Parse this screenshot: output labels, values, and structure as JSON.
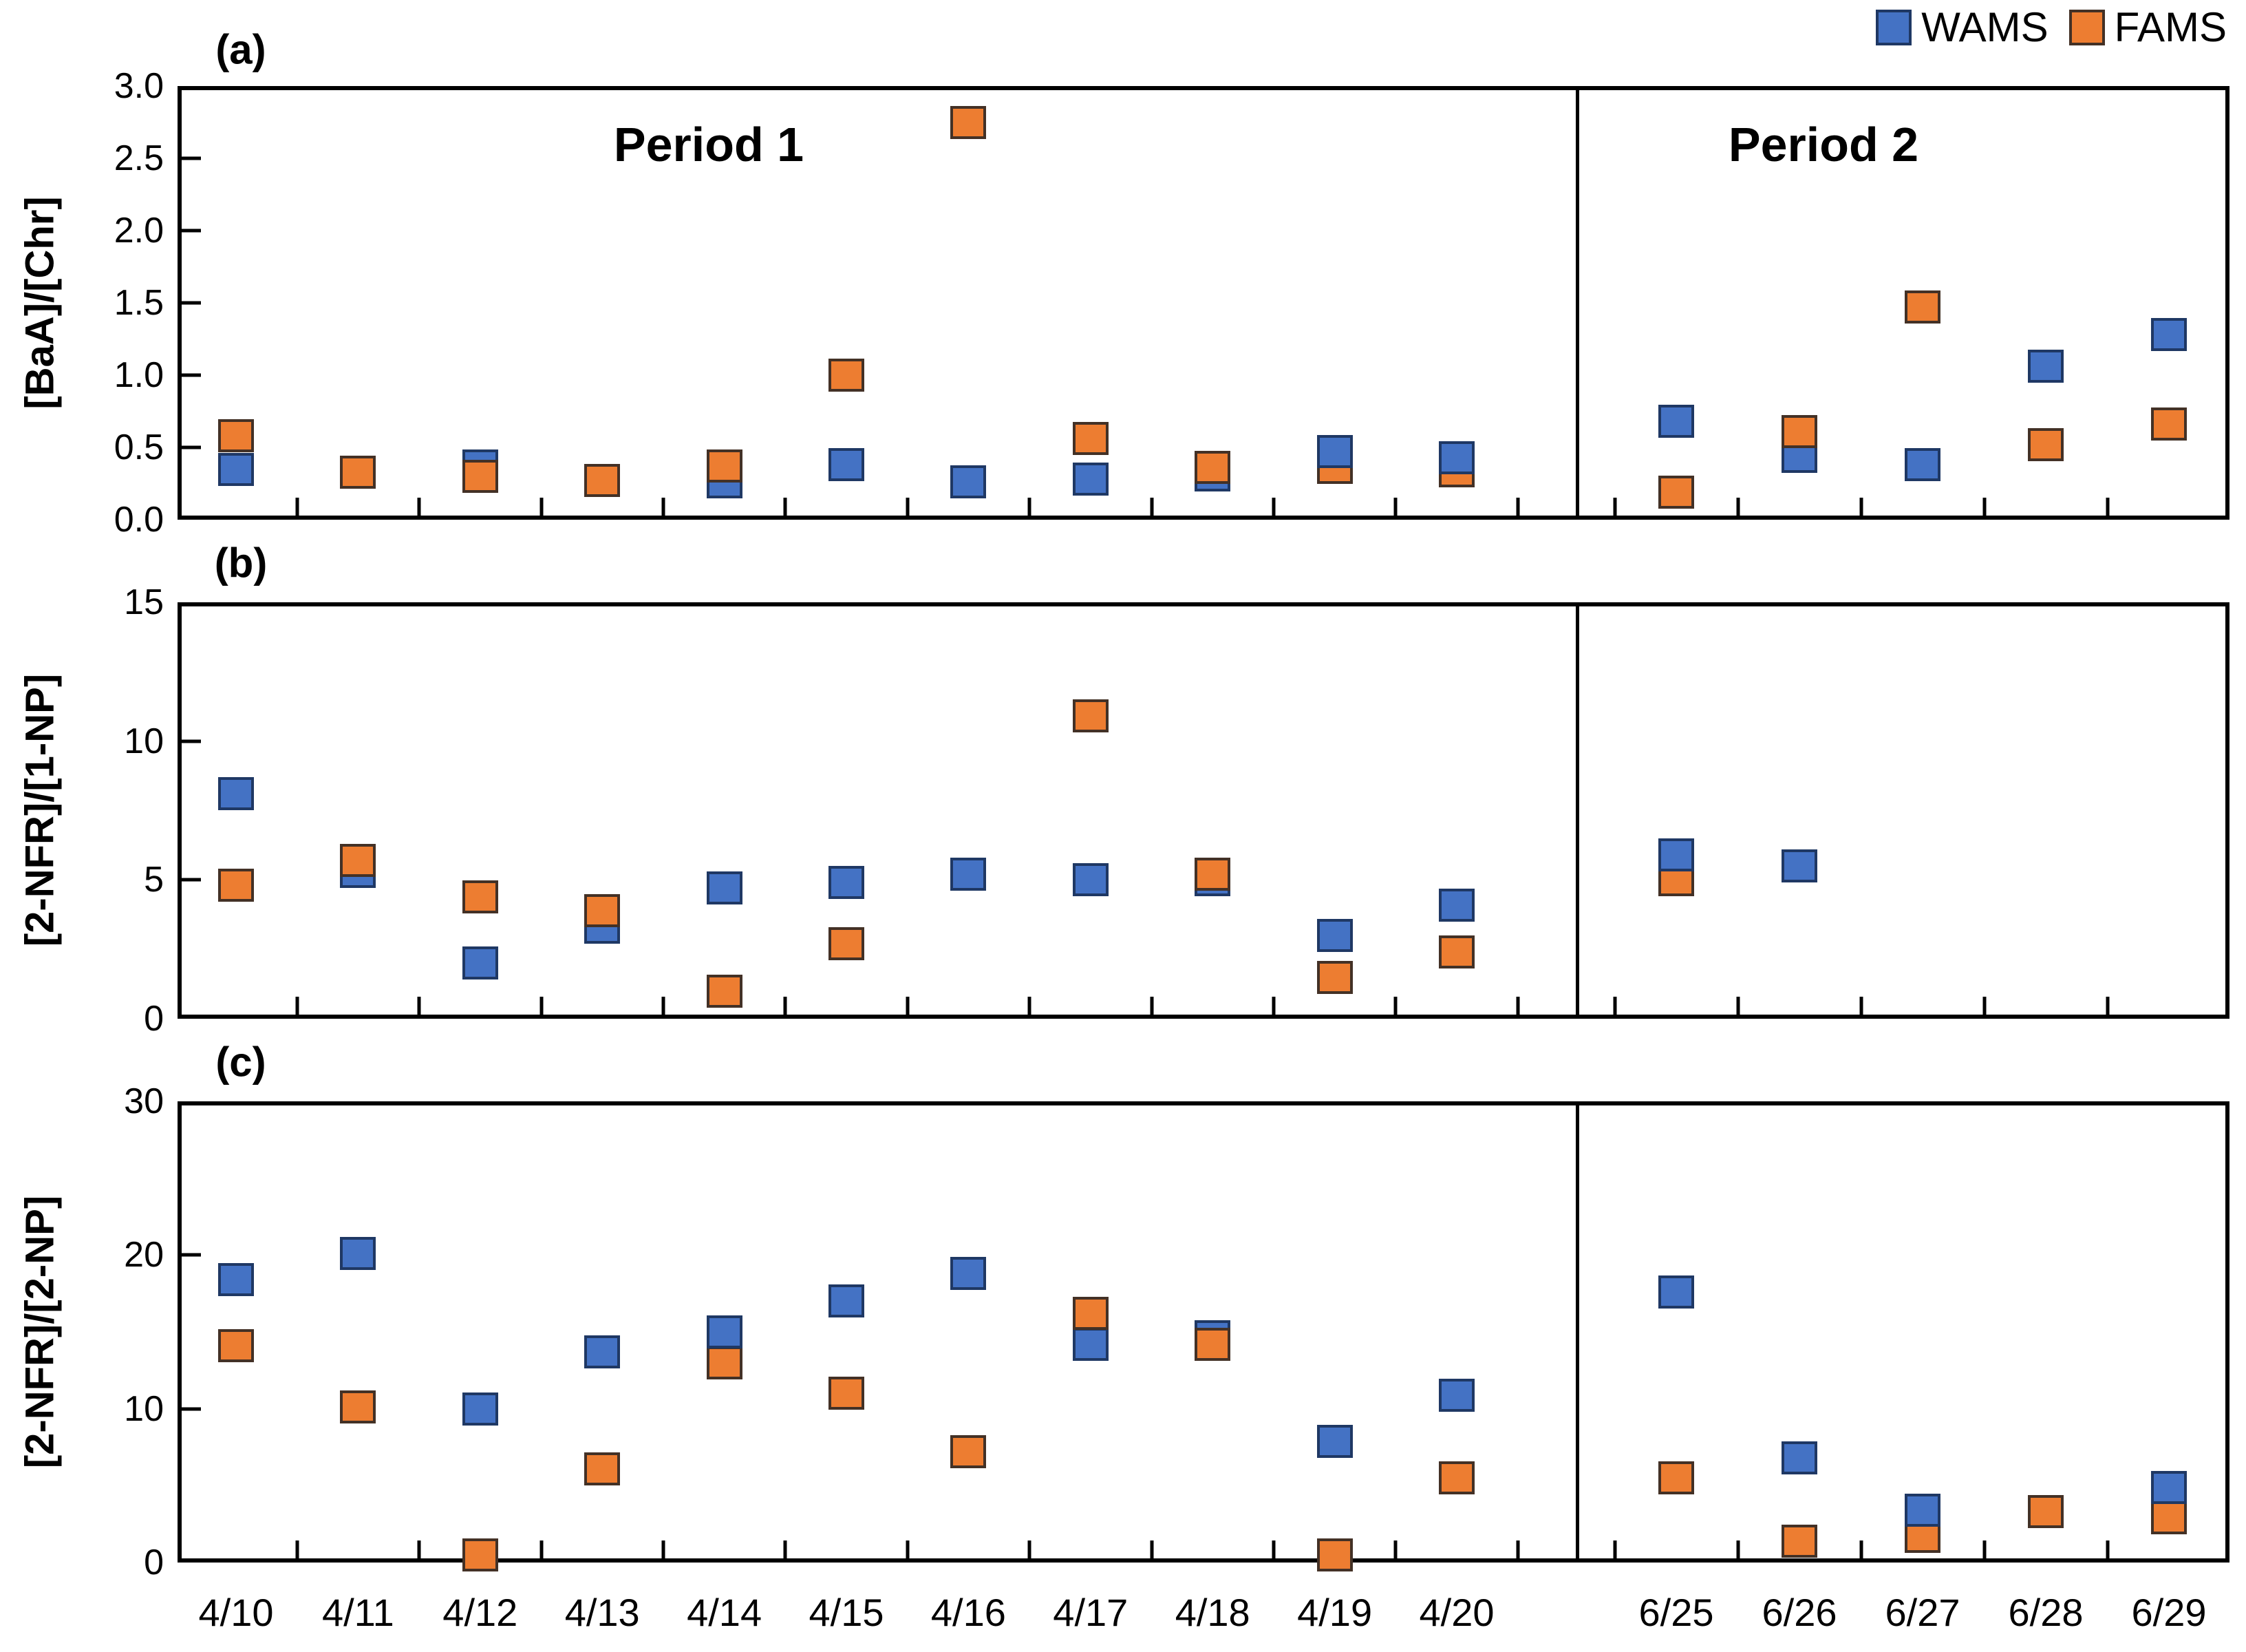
{
  "legend": {
    "items": [
      {
        "label": "WAMS",
        "color": "#4472C4",
        "border": "#1F3864"
      },
      {
        "label": "FAMS",
        "color": "#ED7D31",
        "border": "#433126"
      }
    ]
  },
  "periods": [
    {
      "label": "Period 1",
      "dates": [
        "4/10",
        "4/11",
        "4/12",
        "4/13",
        "4/14",
        "4/15",
        "4/16",
        "4/17",
        "4/18",
        "4/19",
        "4/20"
      ]
    },
    {
      "label": "Period 2",
      "dates": [
        "6/25",
        "6/26",
        "6/27",
        "6/28",
        "6/29"
      ]
    }
  ],
  "chart_data": [
    {
      "panel": "(a)",
      "type": "scatter",
      "ylabel": "[BaA]/[Chr]",
      "xlabel": "",
      "ylim": [
        0,
        3
      ],
      "yticks": [
        0,
        0.5,
        1,
        1.5,
        2,
        2.5,
        3
      ],
      "ytick_labels": [
        "0.0",
        "0.5",
        "1.0",
        "1.5",
        "2.0",
        "2.5",
        "3.0"
      ],
      "grid": false,
      "legend_position": "top-right",
      "categories": [
        "4/10",
        "4/11",
        "4/12",
        "4/13",
        "4/14",
        "4/15",
        "4/16",
        "4/17",
        "4/18",
        "4/19",
        "4/20",
        "6/25",
        "6/26",
        "6/27",
        "6/28",
        "6/29"
      ],
      "series": [
        {
          "name": "WAMS",
          "color": "#4472C4",
          "border": "#1F3864",
          "values": [
            0.35,
            null,
            0.37,
            null,
            0.26,
            0.38,
            0.26,
            0.28,
            0.31,
            0.47,
            0.43,
            0.68,
            0.44,
            0.38,
            1.06,
            1.28
          ]
        },
        {
          "name": "FAMS",
          "color": "#ED7D31",
          "border": "#433126",
          "values": [
            0.58,
            0.33,
            0.3,
            0.27,
            0.37,
            1.0,
            2.75,
            0.56,
            0.36,
            0.36,
            0.34,
            0.19,
            0.61,
            1.47,
            0.52,
            0.66
          ]
        }
      ],
      "wams_on_top": [
        "4/19",
        "4/20"
      ]
    },
    {
      "panel": "(b)",
      "type": "scatter",
      "ylabel": "[2-NFR]/[1-NP]",
      "xlabel": "",
      "ylim": [
        0,
        15
      ],
      "yticks": [
        0,
        5,
        10,
        15
      ],
      "ytick_labels": [
        "0",
        "5",
        "10",
        "15"
      ],
      "grid": false,
      "categories": [
        "4/10",
        "4/11",
        "4/12",
        "4/13",
        "4/14",
        "4/15",
        "4/16",
        "4/17",
        "4/18",
        "4/19",
        "4/20",
        "6/25",
        "6/26",
        "6/27",
        "6/28",
        "6/29"
      ],
      "series": [
        {
          "name": "WAMS",
          "color": "#4472C4",
          "border": "#1F3864",
          "values": [
            8.1,
            5.3,
            2.0,
            3.3,
            4.7,
            4.9,
            5.2,
            5.0,
            5.0,
            3.0,
            4.1,
            5.9,
            5.5,
            null,
            null,
            null
          ]
        },
        {
          "name": "FAMS",
          "color": "#ED7D31",
          "border": "#433126",
          "values": [
            4.8,
            5.7,
            4.4,
            3.9,
            1.0,
            2.7,
            null,
            10.9,
            5.2,
            1.5,
            2.4,
            5.0,
            null,
            null,
            null,
            null
          ]
        }
      ],
      "wams_on_top": [
        "6/25"
      ]
    },
    {
      "panel": "(c)",
      "type": "scatter",
      "ylabel": "[2-NFR]/[2-NP]",
      "xlabel": "",
      "ylim": [
        0,
        30
      ],
      "yticks": [
        0,
        10,
        20,
        30
      ],
      "ytick_labels": [
        "0",
        "10",
        "20",
        "30"
      ],
      "grid": false,
      "categories": [
        "4/10",
        "4/11",
        "4/12",
        "4/13",
        "4/14",
        "4/15",
        "4/16",
        "4/17",
        "4/18",
        "4/19",
        "4/20",
        "6/25",
        "6/26",
        "6/27",
        "6/28",
        "6/29"
      ],
      "series": [
        {
          "name": "WAMS",
          "color": "#4472C4",
          "border": "#1F3864",
          "values": [
            18.4,
            20.1,
            10.0,
            13.7,
            15.0,
            17.0,
            18.8,
            14.2,
            14.7,
            7.9,
            10.9,
            17.6,
            6.8,
            3.4,
            null,
            4.9
          ]
        },
        {
          "name": "FAMS",
          "color": "#ED7D31",
          "border": "#433126",
          "values": [
            14.1,
            10.1,
            0.5,
            6.1,
            13.0,
            11.0,
            7.2,
            16.2,
            14.2,
            0.5,
            5.5,
            5.5,
            1.4,
            1.7,
            3.3,
            2.9
          ]
        }
      ],
      "wams_on_top": [
        "4/14",
        "6/27",
        "6/29"
      ]
    }
  ]
}
